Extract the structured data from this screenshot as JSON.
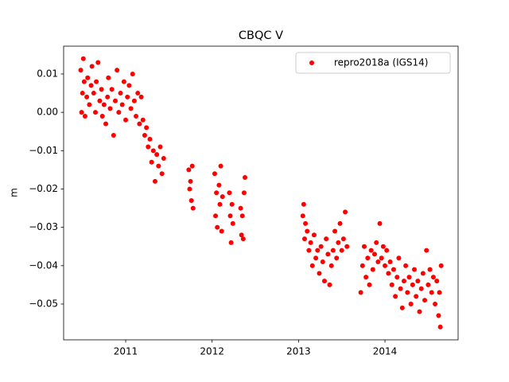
{
  "chart_data": {
    "type": "scatter",
    "title": "CBQC V",
    "ylabel": "m",
    "x": [
      2010.48,
      2010.49,
      2010.5,
      2010.51,
      2010.52,
      2010.53,
      2010.55,
      2010.56,
      2010.58,
      2010.6,
      2010.61,
      2010.63,
      2010.65,
      2010.66,
      2010.68,
      2010.7,
      2010.72,
      2010.73,
      2010.75,
      2010.77,
      2010.79,
      2010.8,
      2010.82,
      2010.84,
      2010.86,
      2010.88,
      2010.9,
      2010.92,
      2010.94,
      2010.96,
      2010.98,
      2011.0,
      2011.02,
      2011.04,
      2011.06,
      2011.08,
      2011.1,
      2011.12,
      2011.14,
      2011.16,
      2011.18,
      2011.2,
      2011.22,
      2011.24,
      2011.26,
      2011.28,
      2011.3,
      2011.32,
      2011.34,
      2011.36,
      2011.38,
      2011.4,
      2011.42,
      2011.44,
      2011.73,
      2011.74,
      2011.75,
      2011.76,
      2011.77,
      2011.78,
      2012.03,
      2012.04,
      2012.05,
      2012.06,
      2012.08,
      2012.09,
      2012.1,
      2012.11,
      2012.12,
      2012.2,
      2012.21,
      2012.22,
      2012.23,
      2012.24,
      2012.33,
      2012.34,
      2012.35,
      2012.36,
      2012.37,
      2012.38,
      2013.05,
      2013.06,
      2013.07,
      2013.08,
      2013.1,
      2013.12,
      2013.14,
      2013.16,
      2013.18,
      2013.2,
      2013.22,
      2013.24,
      2013.26,
      2013.28,
      2013.3,
      2013.32,
      2013.34,
      2013.36,
      2013.38,
      2013.4,
      2013.42,
      2013.44,
      2013.46,
      2013.48,
      2013.5,
      2013.52,
      2013.54,
      2013.56,
      2013.72,
      2013.74,
      2013.76,
      2013.78,
      2013.8,
      2013.82,
      2013.84,
      2013.86,
      2013.88,
      2013.9,
      2013.92,
      2013.94,
      2013.96,
      2013.98,
      2014.0,
      2014.02,
      2014.04,
      2014.06,
      2014.08,
      2014.1,
      2014.12,
      2014.14,
      2014.16,
      2014.18,
      2014.2,
      2014.22,
      2014.24,
      2014.26,
      2014.28,
      2014.3,
      2014.32,
      2014.34,
      2014.36,
      2014.38,
      2014.4,
      2014.42,
      2014.44,
      2014.46,
      2014.48,
      2014.5,
      2014.52,
      2014.54,
      2014.56,
      2014.58,
      2014.6,
      2014.62,
      2014.63,
      2014.64,
      2014.65
    ],
    "series": [
      {
        "name": "repro2018a (IGS14)",
        "color": "#ff0000",
        "values": [
          0.011,
          0.0,
          0.005,
          0.014,
          0.008,
          -0.001,
          0.004,
          0.009,
          0.002,
          0.007,
          0.012,
          0.005,
          0.0,
          0.008,
          0.013,
          0.003,
          0.006,
          -0.001,
          0.002,
          -0.003,
          0.004,
          0.009,
          0.001,
          0.006,
          -0.006,
          0.003,
          0.011,
          0.0,
          0.005,
          0.002,
          0.008,
          -0.002,
          0.004,
          0.007,
          0.001,
          0.01,
          0.003,
          -0.001,
          0.005,
          -0.003,
          0.004,
          -0.002,
          -0.006,
          -0.004,
          -0.009,
          -0.007,
          -0.013,
          -0.01,
          -0.018,
          -0.011,
          -0.014,
          -0.009,
          -0.016,
          -0.012,
          -0.015,
          -0.02,
          -0.018,
          -0.023,
          -0.014,
          -0.025,
          -0.016,
          -0.027,
          -0.021,
          -0.03,
          -0.019,
          -0.024,
          -0.014,
          -0.031,
          -0.022,
          -0.021,
          -0.027,
          -0.034,
          -0.024,
          -0.029,
          -0.025,
          -0.032,
          -0.027,
          -0.033,
          -0.021,
          -0.017,
          -0.027,
          -0.024,
          -0.033,
          -0.029,
          -0.031,
          -0.036,
          -0.034,
          -0.04,
          -0.032,
          -0.038,
          -0.036,
          -0.042,
          -0.035,
          -0.039,
          -0.044,
          -0.033,
          -0.037,
          -0.045,
          -0.04,
          -0.036,
          -0.031,
          -0.038,
          -0.034,
          -0.029,
          -0.036,
          -0.033,
          -0.026,
          -0.035,
          -0.047,
          -0.04,
          -0.035,
          -0.043,
          -0.038,
          -0.045,
          -0.036,
          -0.041,
          -0.037,
          -0.034,
          -0.039,
          -0.029,
          -0.038,
          -0.035,
          -0.04,
          -0.036,
          -0.042,
          -0.039,
          -0.045,
          -0.041,
          -0.048,
          -0.043,
          -0.038,
          -0.046,
          -0.051,
          -0.044,
          -0.04,
          -0.047,
          -0.043,
          -0.05,
          -0.045,
          -0.041,
          -0.048,
          -0.044,
          -0.052,
          -0.046,
          -0.042,
          -0.049,
          -0.036,
          -0.045,
          -0.041,
          -0.047,
          -0.043,
          -0.05,
          -0.044,
          -0.053,
          -0.047,
          -0.056,
          -0.04
        ]
      }
    ],
    "xlim": [
      2010.282,
      2014.846
    ],
    "xticks": [
      2011,
      2012,
      2013,
      2014
    ],
    "ylim": [
      -0.05934,
      0.01726
    ],
    "yticks": [
      {
        "value": 0.01,
        "label": "0.01"
      },
      {
        "value": 0,
        "label": "0.00"
      },
      {
        "value": -0.01,
        "label": "−0.01"
      },
      {
        "value": -0.02,
        "label": "−0.02"
      },
      {
        "value": -0.03,
        "label": "−0.03"
      },
      {
        "value": -0.04,
        "label": "−0.04"
      },
      {
        "value": -0.05,
        "label": "−0.05"
      }
    ],
    "grid": false,
    "legend": "upper right"
  }
}
